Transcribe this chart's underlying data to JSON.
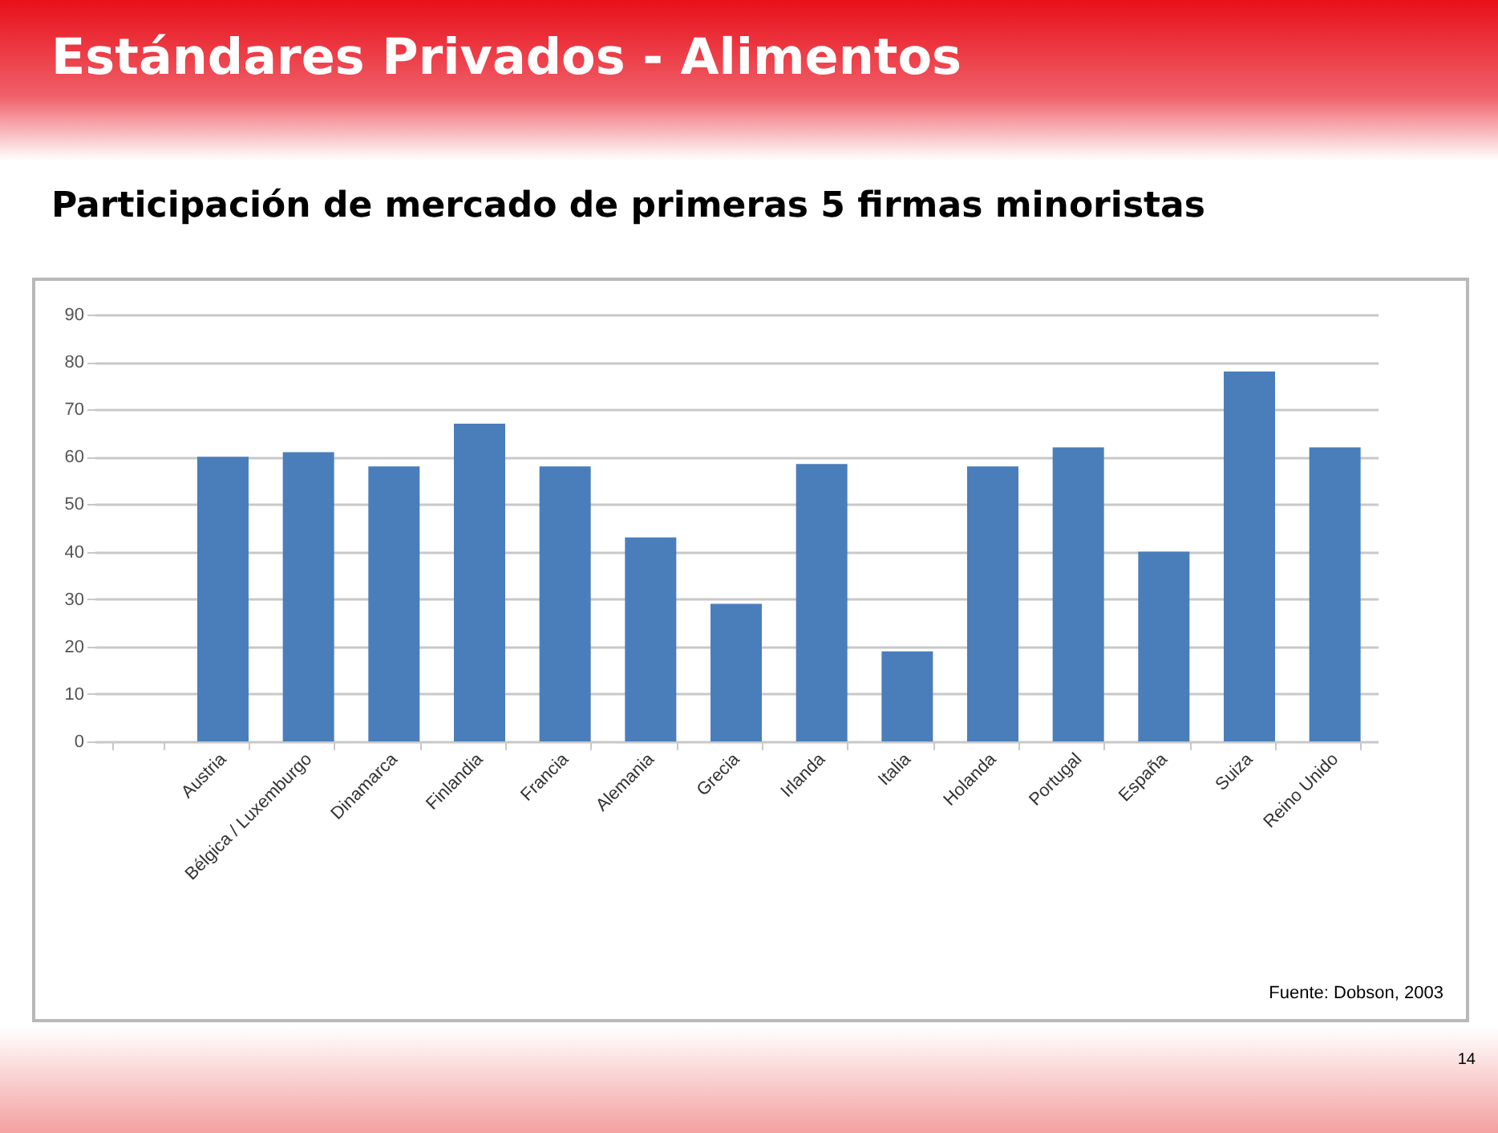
{
  "chart_data": {
    "type": "bar",
    "title": "Estándares Privados - Alimentos",
    "subtitle": "Participación de mercado de primeras 5 firmas minoristas",
    "categories": [
      null,
      "Austria",
      "Bélgica / Luxemburgo",
      "Dinamarca",
      "Finlandia",
      "Francia",
      "Alemania",
      "Grecia",
      "Irlanda",
      "Italia",
      "Holanda",
      "Portugal",
      "España",
      "Suiza",
      "Reino Unido"
    ],
    "values": [
      null,
      60,
      61,
      58,
      67,
      58,
      43,
      29,
      58.5,
      19,
      58,
      62,
      40,
      78,
      62
    ],
    "color": "#4a7ebb",
    "ylim": [
      0,
      90
    ],
    "yticks": [
      0,
      10,
      20,
      30,
      40,
      50,
      60,
      70,
      80,
      90
    ],
    "grid": "y",
    "annotations": [
      "Fuente:  Dobson,  2003",
      "14"
    ]
  }
}
